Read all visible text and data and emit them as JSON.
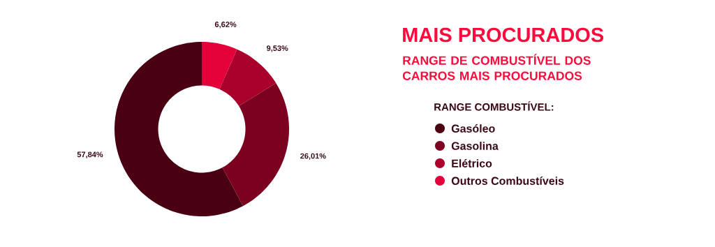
{
  "chart_data": {
    "type": "donut",
    "title": "MAIS PROCURADOS",
    "subtitle": "RANGE DE COMBUSTÍVEL DOS CARROS MAIS PROCURADOS",
    "legend_title": "RANGE COMBUSTÍVEL:",
    "categories": [
      "Gasóleo",
      "Gasolina",
      "Elétrico",
      "Outros Combustíveis"
    ],
    "values": [
      57.84,
      26.01,
      9.53,
      6.62
    ],
    "colors": [
      "#4a0012",
      "#7c0020",
      "#aa002c",
      "#e4003a"
    ],
    "value_labels": [
      "57,84%",
      "26,01%",
      "9,53%",
      "6,62%"
    ],
    "legend": "right"
  }
}
